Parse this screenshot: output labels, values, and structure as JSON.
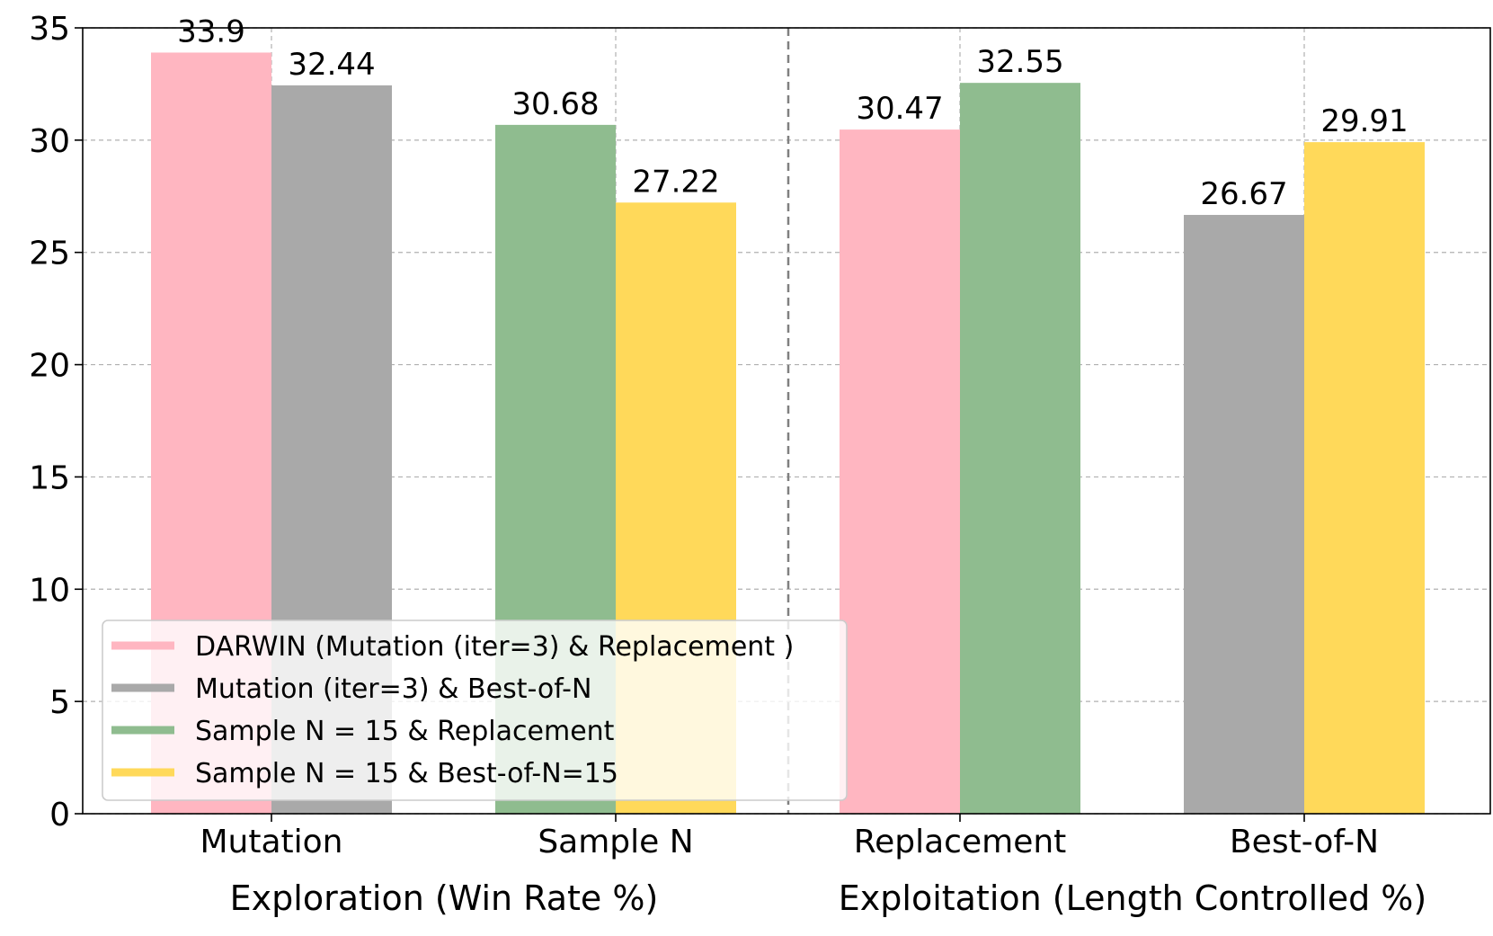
{
  "chart_data": {
    "type": "bar",
    "title": "",
    "categories": [
      "Mutation",
      "Sample N",
      "Replacement",
      "Best-of-N"
    ],
    "group_titles": [
      "Exploration (Win Rate %)",
      "Exploitation (Length Controlled %)"
    ],
    "ylabel": "",
    "ylim": [
      0,
      35
    ],
    "yticks": [
      0,
      5,
      10,
      15,
      20,
      25,
      30,
      35
    ],
    "grid": true,
    "legend_position": "lower-left",
    "series": [
      {
        "name": "DARWIN (Mutation (iter=3) & Replacement )",
        "color": "#FFB6C1"
      },
      {
        "name": "Mutation (iter=3) & Best-of-N",
        "color": "#A9A9A9"
      },
      {
        "name": "Sample N = 15 & Replacement",
        "color": "#8FBC8F"
      },
      {
        "name": "Sample N = 15 & Best-of-N=15",
        "color": "#FFD95A"
      }
    ],
    "bars": [
      {
        "category": "Mutation",
        "series": 0,
        "value": 33.9,
        "label": "33.9"
      },
      {
        "category": "Mutation",
        "series": 1,
        "value": 32.44,
        "label": "32.44"
      },
      {
        "category": "Sample N",
        "series": 2,
        "value": 30.68,
        "label": "30.68"
      },
      {
        "category": "Sample N",
        "series": 3,
        "value": 27.22,
        "label": "27.22"
      },
      {
        "category": "Replacement",
        "series": 0,
        "value": 30.47,
        "label": "30.47"
      },
      {
        "category": "Replacement",
        "series": 2,
        "value": 32.55,
        "label": "32.55"
      },
      {
        "category": "Best-of-N",
        "series": 1,
        "value": 26.67,
        "label": "26.67"
      },
      {
        "category": "Best-of-N",
        "series": 3,
        "value": 29.91,
        "label": "29.91"
      }
    ]
  }
}
